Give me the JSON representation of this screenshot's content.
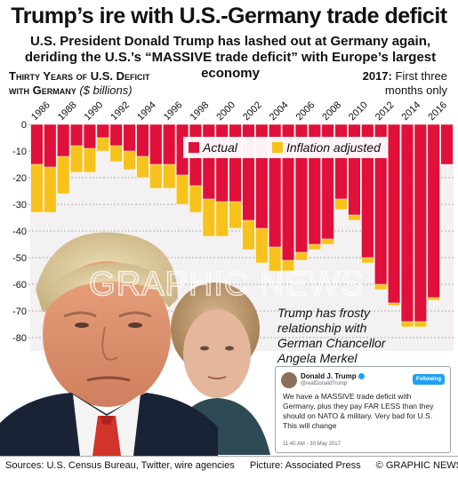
{
  "header": {
    "title": "Trump’s ire with U.S.-Germany trade deficit",
    "subtitle": "U.S. President Donald Trump has lashed out at Germany again, deriding the U.S.’s “MASSIVE trade deficit” with Europe’s largest economy"
  },
  "section": {
    "heading_line1": "Thirty Years of U.S. Deficit",
    "heading_line2": "with Germany",
    "unit": "($ billions)"
  },
  "note": {
    "bold": "2017:",
    "text": "First three months only"
  },
  "photo_caption": "Trump has frosty relationship with German Chancellor Angela Merkel",
  "watermark": "GRAPHIC NEWS",
  "tweet": {
    "name": "Donald J. Trump",
    "handle": "@realDonaldTrump",
    "follow": "Following",
    "text": "We have a MASSIVE trade deficit with Germany, plus they pay FAR LESS than they should on NATO & military. Very bad for U.S. This will change",
    "time": "11:40 AM - 30 May 2017"
  },
  "footer": {
    "sources": "Sources: U.S. Census Bureau, Twitter, wire agencies",
    "picture": "Picture: Associated Press",
    "credit": "© GRAPHIC NEWS"
  },
  "colors": {
    "actual": "#e0103a",
    "inflation": "#f7c21b",
    "grid": "#9a9a9a"
  },
  "chart_data": {
    "type": "bar",
    "title": "Thirty Years of U.S. Deficit with Germany",
    "ylabel": "($ billions)",
    "ylim": [
      -85,
      0
    ],
    "yticks": [
      0,
      -10,
      -20,
      -30,
      -40,
      -50,
      -60,
      -70,
      -80
    ],
    "x": [
      1986,
      1987,
      1988,
      1989,
      1990,
      1991,
      1992,
      1993,
      1994,
      1995,
      1996,
      1997,
      1998,
      1999,
      2000,
      2001,
      2002,
      2003,
      2004,
      2005,
      2006,
      2007,
      2008,
      2009,
      2010,
      2011,
      2012,
      2013,
      2014,
      2015,
      2016,
      2017
    ],
    "xtick_labels": [
      "1986",
      "1988",
      "1990",
      "1992",
      "1994",
      "1996",
      "1998",
      "2000",
      "2002",
      "2004",
      "2006",
      "2008",
      "2010",
      "2012",
      "2014",
      "2016"
    ],
    "series": [
      {
        "name": "Actual",
        "values": [
          -15,
          -16,
          -12,
          -8,
          -9,
          -5,
          -8,
          -10,
          -12,
          -15,
          -15,
          -19,
          -23,
          -28,
          -29,
          -29,
          -36,
          -39,
          -46,
          -51,
          -48,
          -45,
          -43,
          -28,
          -34,
          -50,
          -60,
          -67,
          -74,
          -74,
          -65,
          -15
        ]
      },
      {
        "name": "Inflation adjusted",
        "values": [
          -33,
          -33,
          -26,
          -18,
          -18,
          -10,
          -14,
          -17,
          -20,
          -24,
          -24,
          -30,
          -33,
          -42,
          -42,
          -39,
          -47,
          -52,
          -55,
          -55,
          -51,
          -47,
          -45,
          -32,
          -36,
          -52,
          -62,
          -68,
          -76,
          -76,
          -66,
          -15
        ]
      }
    ]
  }
}
